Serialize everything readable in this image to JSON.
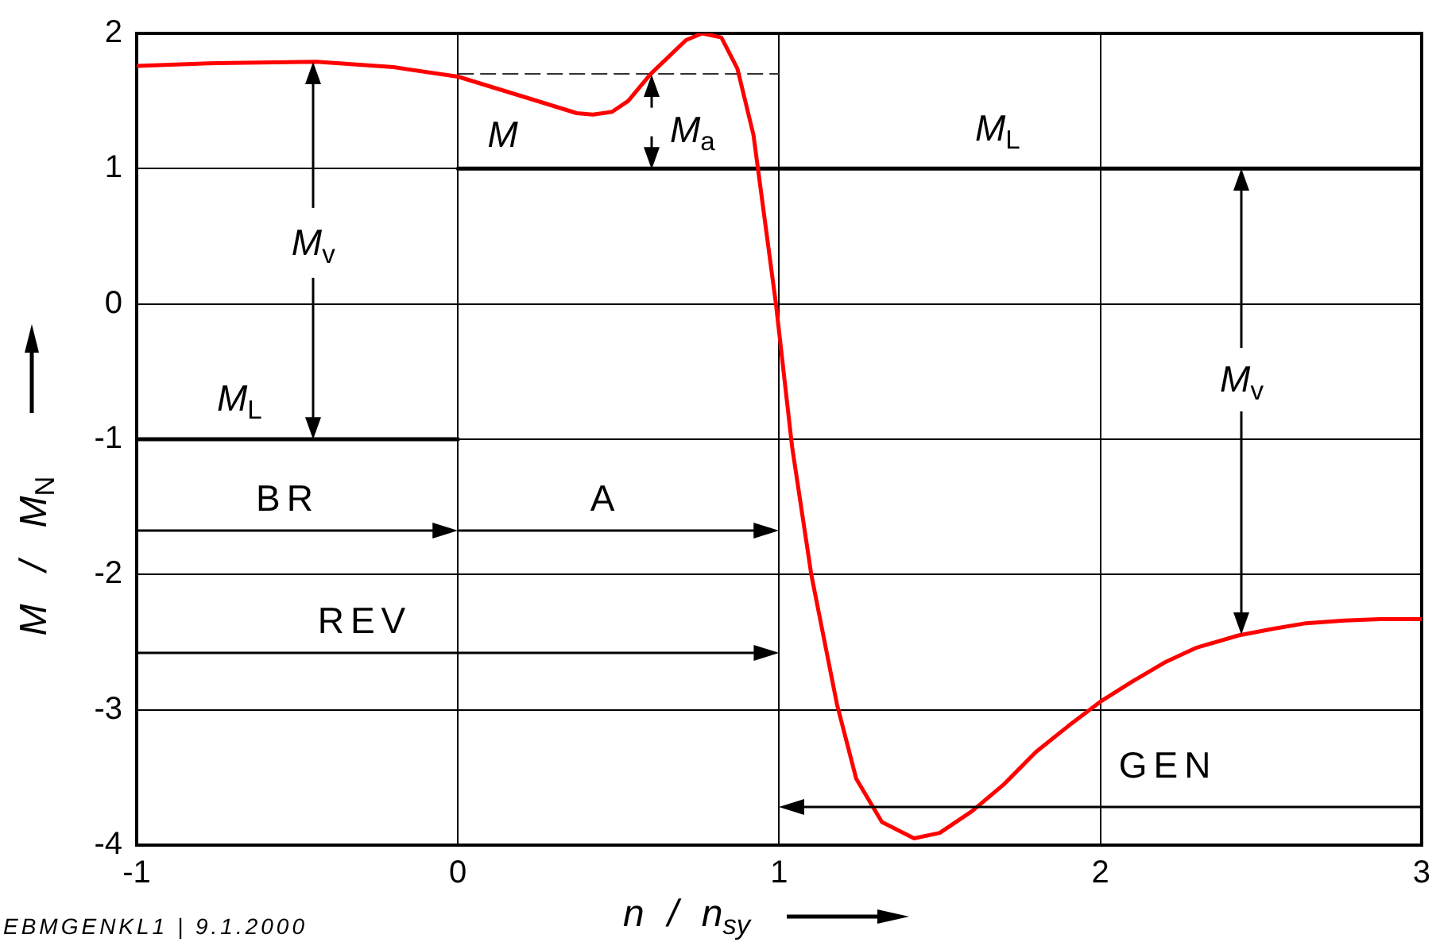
{
  "chart_data": {
    "type": "line",
    "xlabel": "n / n$_{sy}$",
    "ylabel": "M / M$_{N}$",
    "xlim": [
      -1,
      3
    ],
    "xticks": [
      -1,
      0,
      1,
      2,
      3
    ],
    "ylim": [
      -4,
      2
    ],
    "yticks": [
      -4,
      -3,
      -2,
      -1,
      0,
      1,
      2
    ],
    "grid": true,
    "marker": "none",
    "line_style": "solid",
    "series": [
      {
        "color": "#ff0000",
        "x": [
          -1,
          -0.75,
          -0.44,
          -0.2,
          0,
          0.22,
          0.37,
          0.42,
          0.48,
          0.53,
          0.6,
          0.71,
          0.76,
          0.82,
          0.87,
          0.92,
          0.99,
          1.04,
          1.1,
          1.18,
          1.24,
          1.32,
          1.42,
          1.5,
          1.6,
          1.7,
          1.8,
          1.9,
          2,
          2.1,
          2.2,
          2.3,
          2.43,
          2.54,
          2.64,
          2.76,
          2.87,
          3
        ],
        "values": [
          1.76,
          1.78,
          1.79,
          1.75,
          1.68,
          1.52,
          1.41,
          1.4,
          1.42,
          1.5,
          1.7,
          1.95,
          2,
          1.97,
          1.74,
          1.25,
          0,
          -1.05,
          -2,
          -2.96,
          -3.51,
          -3.83,
          -3.95,
          -3.91,
          -3.75,
          -3.55,
          -3.31,
          -3.12,
          -2.94,
          -2.79,
          -2.65,
          -2.54,
          -2.45,
          -2.4,
          -2.36,
          -2.34,
          -2.33,
          -2.33
        ]
      },
      {
        "color": "#000000",
        "x": [
          -1,
          0
        ],
        "values": [
          -1,
          -1
        ]
      },
      {
        "color": "#000000",
        "x": [
          0,
          3
        ],
        "values": [
          1,
          1
        ]
      },
      {
        "color": "#333333",
        "x": [
          0,
          1
        ],
        "values": [
          1.7,
          1.7
        ],
        "line_style": "dashed"
      }
    ],
    "annotations": [
      "M",
      "M$_{a}$",
      "M$_{L}$",
      "M$_{v}$",
      "M$_{L}$",
      "M$_{v}$",
      "BR",
      "A",
      "REV",
      "GEN",
      "EBMGENKL1 | 9.1.2000"
    ]
  }
}
